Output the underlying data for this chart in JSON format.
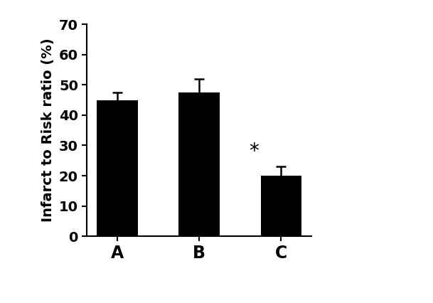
{
  "categories": [
    "A",
    "B",
    "C"
  ],
  "values": [
    45.0,
    47.5,
    20.0
  ],
  "errors": [
    2.5,
    4.5,
    3.0
  ],
  "bar_color": "#000000",
  "bar_width": 0.5,
  "ylabel": "Infarct to Risk ratio (%)",
  "ylim": [
    0,
    70
  ],
  "yticks": [
    0,
    10,
    20,
    30,
    40,
    50,
    60,
    70
  ],
  "significance_label": "*",
  "significance_bar_index": 2,
  "background_color": "#ffffff",
  "ylabel_fontsize": 14,
  "tick_fontsize": 14,
  "xlabel_fontsize": 17,
  "sig_fontsize": 20
}
